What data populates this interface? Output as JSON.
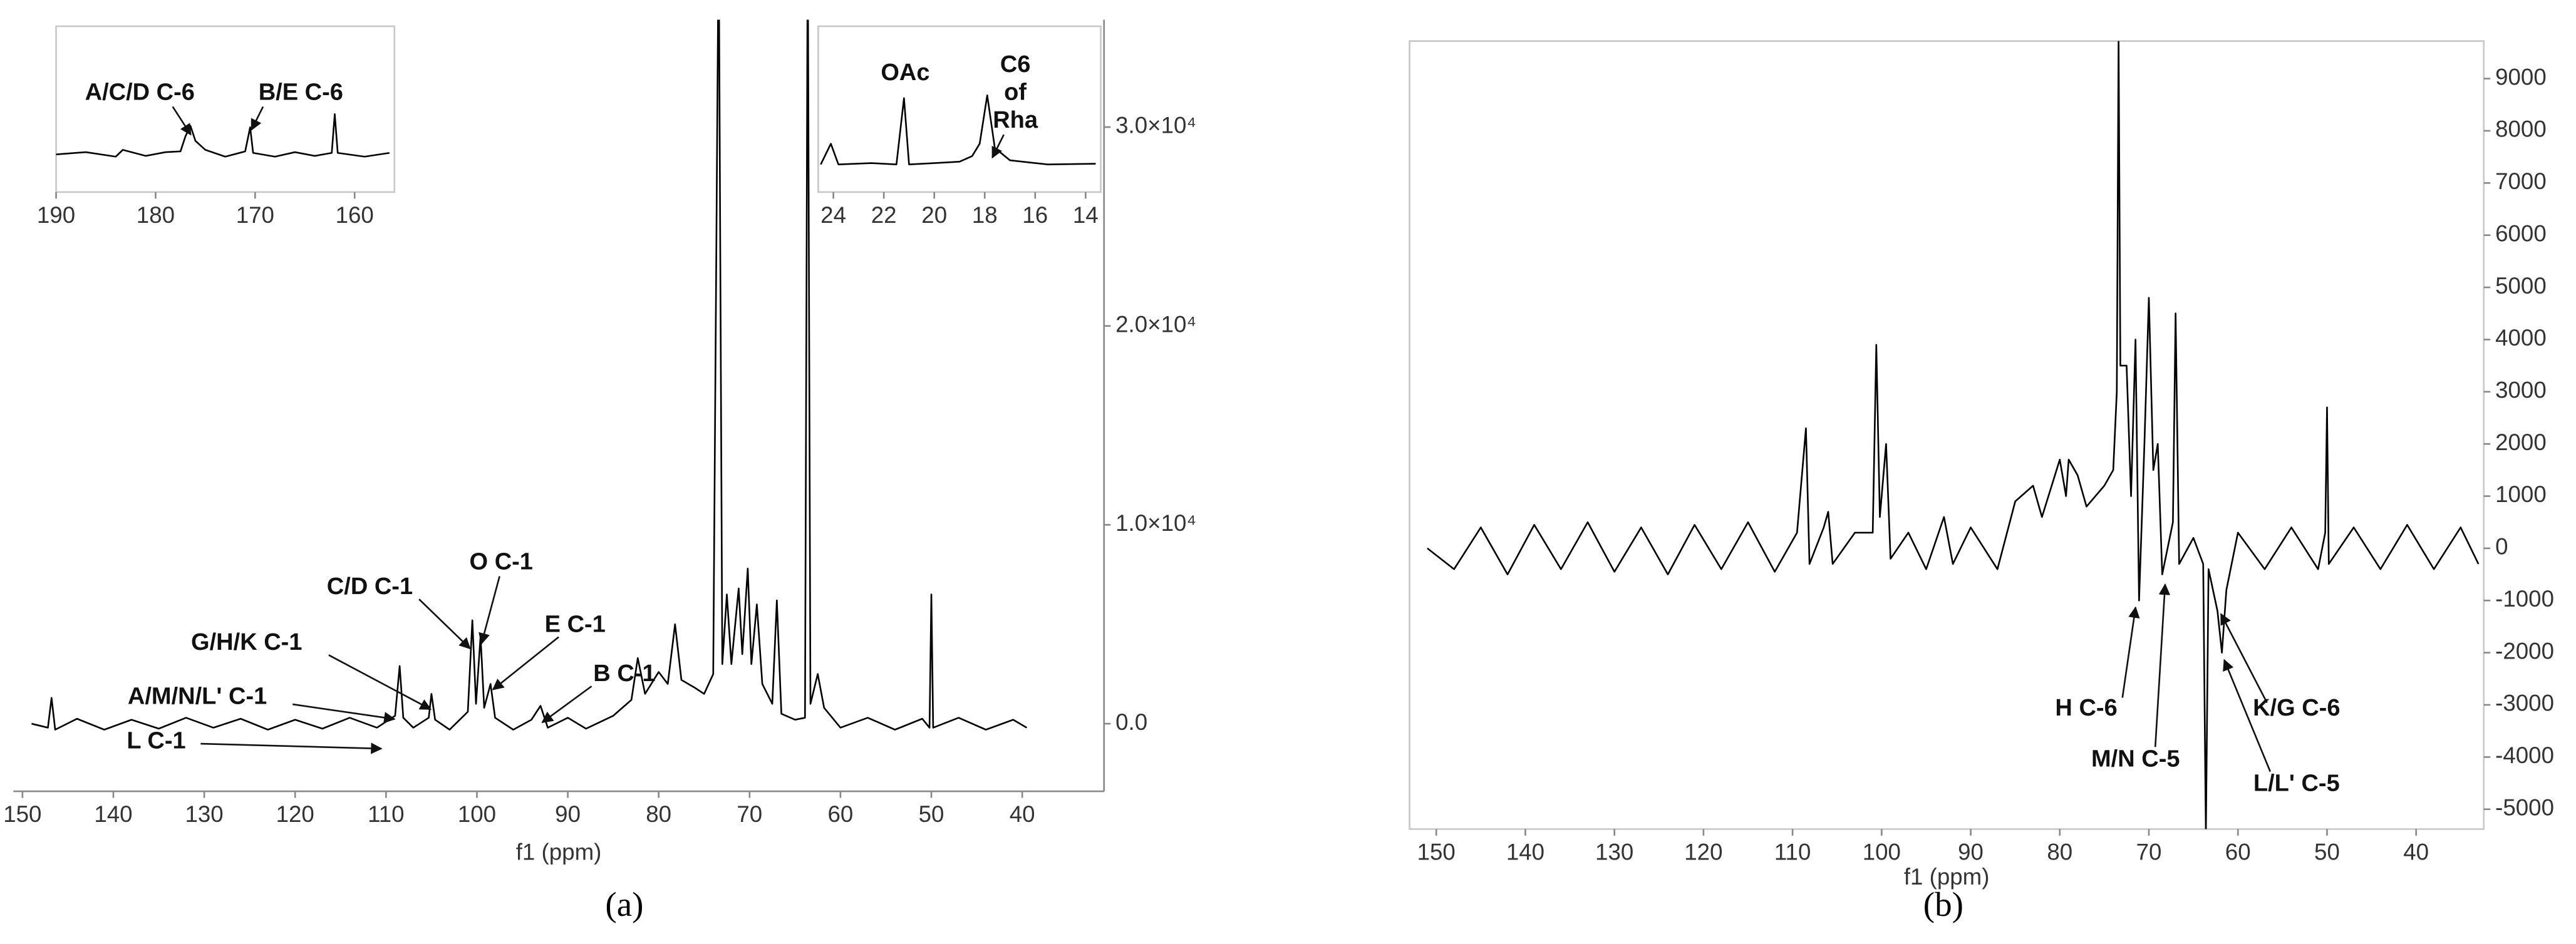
{
  "chart_data": [
    {
      "type": "line",
      "panel_label": "(a)",
      "xlabel": "f1 (ppm)",
      "frame": false,
      "y_axis": "right",
      "xlim": [
        151,
        31
      ],
      "xticks": [
        150,
        140,
        130,
        120,
        110,
        100,
        90,
        80,
        70,
        60,
        50,
        40
      ],
      "ylim": [
        -3400,
        35400
      ],
      "yticks": [
        {
          "value": 0,
          "label": "0.0"
        },
        {
          "value": 10000,
          "label": "1.0×10⁴"
        },
        {
          "value": 20000,
          "label": "2.0×10⁴"
        },
        {
          "value": 30000,
          "label": "3.0×10⁴"
        }
      ],
      "series": [
        {
          "color": "#000000",
          "x": [
            149,
            147.2,
            146.8,
            146.4,
            144,
            141,
            138,
            135,
            132,
            129,
            126,
            123,
            120,
            117,
            114,
            111,
            109,
            108.5,
            108.1,
            107,
            105.3,
            105,
            104.6,
            103,
            101,
            100.5,
            100.1,
            99.6,
            99.2,
            98.5,
            98,
            96,
            94,
            93,
            92.2,
            90,
            88,
            85,
            83,
            82.3,
            81.5,
            80,
            79,
            78.2,
            77.5,
            76,
            75,
            74,
            73.4,
            73,
            72.5,
            72,
            71.2,
            70.8,
            70.2,
            69.8,
            69.2,
            68.6,
            67.5,
            67,
            66.5,
            65,
            63.9,
            63.6,
            63.3,
            62.5,
            61.8,
            60,
            57,
            54,
            51,
            50.2,
            50,
            49.8,
            47,
            44,
            41,
            39.5
          ],
          "values": [
            0,
            -200,
            1300,
            -300,
            250,
            -300,
            200,
            -250,
            300,
            -200,
            250,
            -300,
            200,
            -250,
            300,
            -200,
            400,
            2900,
            300,
            -200,
            300,
            1500,
            200,
            -300,
            600,
            5200,
            1000,
            4400,
            800,
            2000,
            300,
            -300,
            200,
            900,
            -200,
            300,
            -250,
            400,
            1200,
            3300,
            1500,
            2600,
            2000,
            5000,
            2200,
            1800,
            1500,
            2500,
            40000,
            3000,
            6500,
            3000,
            6800,
            3500,
            7800,
            3000,
            6000,
            2000,
            1000,
            6200,
            500,
            200,
            300,
            40000,
            1000,
            2500,
            800,
            -200,
            300,
            -300,
            250,
            -200,
            6500,
            -200,
            300,
            -300,
            200,
            -200
          ]
        }
      ],
      "annotations": [
        "O C-1",
        "C/D C-1",
        "E C-1",
        "G/H/K C-1",
        "A/M/N/L' C-1",
        "B C-1",
        "L C-1"
      ]
    },
    {
      "type": "line",
      "frame": true,
      "xlim": [
        190,
        156
      ],
      "xticks": [
        190,
        180,
        170,
        160
      ],
      "ylim": [
        -2500,
        8500
      ],
      "series": [
        {
          "color": "#000000",
          "x": [
            190,
            187,
            184,
            183.3,
            181,
            179,
            177.5,
            177,
            176.5,
            176,
            175,
            173,
            171,
            170.5,
            170.2,
            168,
            166,
            164,
            162.3,
            162,
            161.7,
            159,
            156.5
          ],
          "values": [
            0,
            150,
            -150,
            300,
            -100,
            150,
            200,
            1200,
            1900,
            900,
            300,
            -150,
            200,
            1800,
            100,
            -150,
            150,
            -100,
            100,
            2670,
            100,
            -150,
            100
          ]
        }
      ],
      "annotations": [
        "A/C/D C-6",
        "B/E C-6"
      ]
    },
    {
      "type": "line",
      "frame": true,
      "xlim": [
        24.6,
        13.4
      ],
      "xticks": [
        24,
        22,
        20,
        18,
        16,
        14
      ],
      "ylim": [
        -2000,
        10000
      ],
      "series": [
        {
          "color": "#000000",
          "x": [
            24.5,
            24.1,
            23.8,
            22.5,
            21.5,
            21.2,
            21,
            20,
            19,
            18.5,
            18.2,
            17.9,
            17.6,
            17,
            15.5,
            13.6
          ],
          "values": [
            0,
            1500,
            0,
            100,
            0,
            4800,
            0,
            100,
            200,
            600,
            1500,
            5000,
            1200,
            300,
            0,
            50
          ]
        }
      ],
      "annotations": [
        "OAc",
        [
          "C6",
          "of",
          "Rha"
        ]
      ]
    },
    {
      "type": "line",
      "panel_label": "(b)",
      "xlabel": "f1 (ppm)",
      "frame": true,
      "y_axis": "right",
      "xlim": [
        153,
        32.4
      ],
      "xticks": [
        150,
        140,
        130,
        120,
        110,
        100,
        90,
        80,
        70,
        60,
        50,
        40
      ],
      "ylim": [
        -5380,
        9720
      ],
      "yticks": [
        9000,
        8000,
        7000,
        6000,
        5000,
        4000,
        3000,
        2000,
        1000,
        0,
        -1000,
        -2000,
        -3000,
        -4000,
        -5000
      ],
      "series": [
        {
          "color": "#000000",
          "x": [
            151,
            148,
            145,
            142,
            139,
            136,
            133,
            130,
            127,
            124,
            121,
            118,
            115,
            112,
            109.5,
            108.5,
            108.1,
            106.5,
            106,
            105.5,
            103,
            101,
            100.6,
            100.2,
            99.5,
            99,
            97,
            95,
            93,
            92,
            90,
            87,
            85,
            83,
            82,
            80,
            79.3,
            79,
            78,
            77,
            75,
            74,
            73.6,
            73.4,
            73.2,
            72.5,
            72,
            71.5,
            71.1,
            70.5,
            70,
            69.5,
            69,
            68.5,
            67.3,
            67,
            66.6,
            65,
            63.9,
            63.6,
            63.3,
            62.3,
            61.8,
            61.3,
            60,
            57,
            54,
            51,
            50.2,
            50,
            49.8,
            47,
            44,
            41,
            38,
            35,
            33
          ],
          "values": [
            0,
            -400,
            400,
            -500,
            450,
            -400,
            500,
            -450,
            400,
            -500,
            450,
            -400,
            500,
            -450,
            300,
            2300,
            -300,
            400,
            700,
            -300,
            300,
            300,
            3900,
            600,
            2000,
            -200,
            300,
            -400,
            600,
            -300,
            400,
            -400,
            900,
            1200,
            600,
            1700,
            1000,
            1700,
            1400,
            800,
            1200,
            1500,
            3000,
            9800,
            3500,
            3500,
            1000,
            4000,
            -1000,
            2000,
            4800,
            1500,
            2000,
            -500,
            500,
            4500,
            -300,
            200,
            -300,
            -5500,
            -400,
            -1200,
            -2000,
            -800,
            300,
            -400,
            400,
            -400,
            300,
            2700,
            -300,
            400,
            -400,
            450,
            -400,
            400,
            -300
          ]
        }
      ],
      "annotations": [
        "H C-6",
        "M/N C-5",
        "K/G C-6",
        "L/L' C-5"
      ]
    }
  ]
}
